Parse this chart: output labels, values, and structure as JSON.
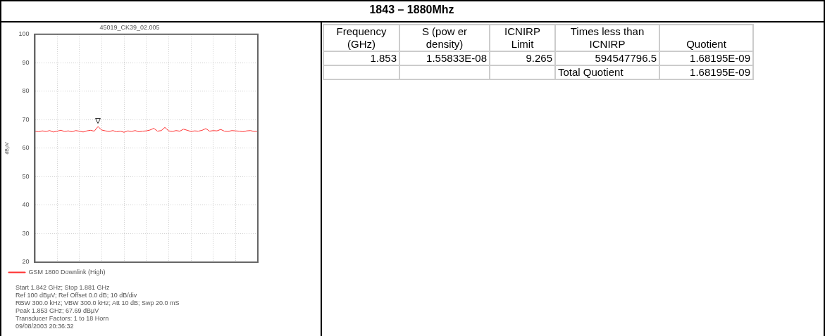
{
  "chart_data": [
    {
      "type": "line",
      "subtitle": "45019_CK39_02.005",
      "ylabel": "dBµV",
      "categories": [
        null,
        null,
        null,
        null,
        null,
        null,
        null,
        null,
        null,
        null,
        null,
        null,
        null,
        null,
        null,
        null,
        null,
        null,
        null,
        null,
        null,
        null,
        null,
        null,
        null,
        null,
        null,
        null,
        null,
        null,
        null,
        null,
        null,
        null,
        null,
        null,
        null,
        null,
        null,
        null,
        null,
        null,
        null,
        null,
        null,
        null,
        null,
        null,
        null,
        null,
        null,
        null,
        null,
        null,
        null,
        null,
        null,
        null,
        null,
        null,
        null
      ],
      "series": [
        {
          "name": "GSM 1800 Downlink (High)",
          "color": "#ff3030",
          "values": [
            66.0,
            65.8,
            66.1,
            65.9,
            66.2,
            65.7,
            66.0,
            66.3,
            65.9,
            66.1,
            65.8,
            66.2,
            66.0,
            65.7,
            66.1,
            66.3,
            66.0,
            67.6,
            66.4,
            66.1,
            65.9,
            66.2,
            65.8,
            66.0,
            65.6,
            66.1,
            65.9,
            66.2,
            65.8,
            66.0,
            66.1,
            66.4,
            67.0,
            66.0,
            66.2,
            67.3,
            66.1,
            65.9,
            66.2,
            66.0,
            66.7,
            66.3,
            65.9,
            66.1,
            66.0,
            66.3,
            66.9,
            66.0,
            66.2,
            66.1,
            66.6,
            66.0,
            65.9,
            66.2,
            66.1,
            66.0,
            65.8,
            66.1,
            66.2,
            65.9,
            66.0
          ]
        }
      ],
      "ylim": [
        20,
        100
      ],
      "yticks": [
        20,
        30,
        40,
        50,
        60,
        70,
        80,
        90,
        100
      ],
      "grid": true,
      "legend": "bottom",
      "tick_labels": "y",
      "marker": "none",
      "line_style": "solid",
      "annotations": [
        "Start 1.842 GHz; Stop 1.881 GHz",
        "Ref 100 dBµV; Ref Offset 0.0 dB; 10 dB/div",
        "RBW 300.0 kHz; VBW 300.0 kHz; Att 10 dB; Swp 20.0 mS",
        "Peak 1.853 GHz; 67.69 dBµV",
        "Transducer Factors: 1 to 18 Horn",
        "09/08/2003 20:36:32"
      ]
    },
    {
      "type": "other",
      "title": "1843 – 1880Mhz",
      "annotations": [
        "Frequency (GHz)",
        "S (pow er density)",
        "ICNIRP Limit",
        "Times less than ICNIRP",
        "Quotient",
        "1.853",
        "1.55833E-08",
        "9.265",
        "594547796.5",
        "1.68195E-09",
        "Total Quotient",
        "1.68195E-09"
      ]
    }
  ]
}
